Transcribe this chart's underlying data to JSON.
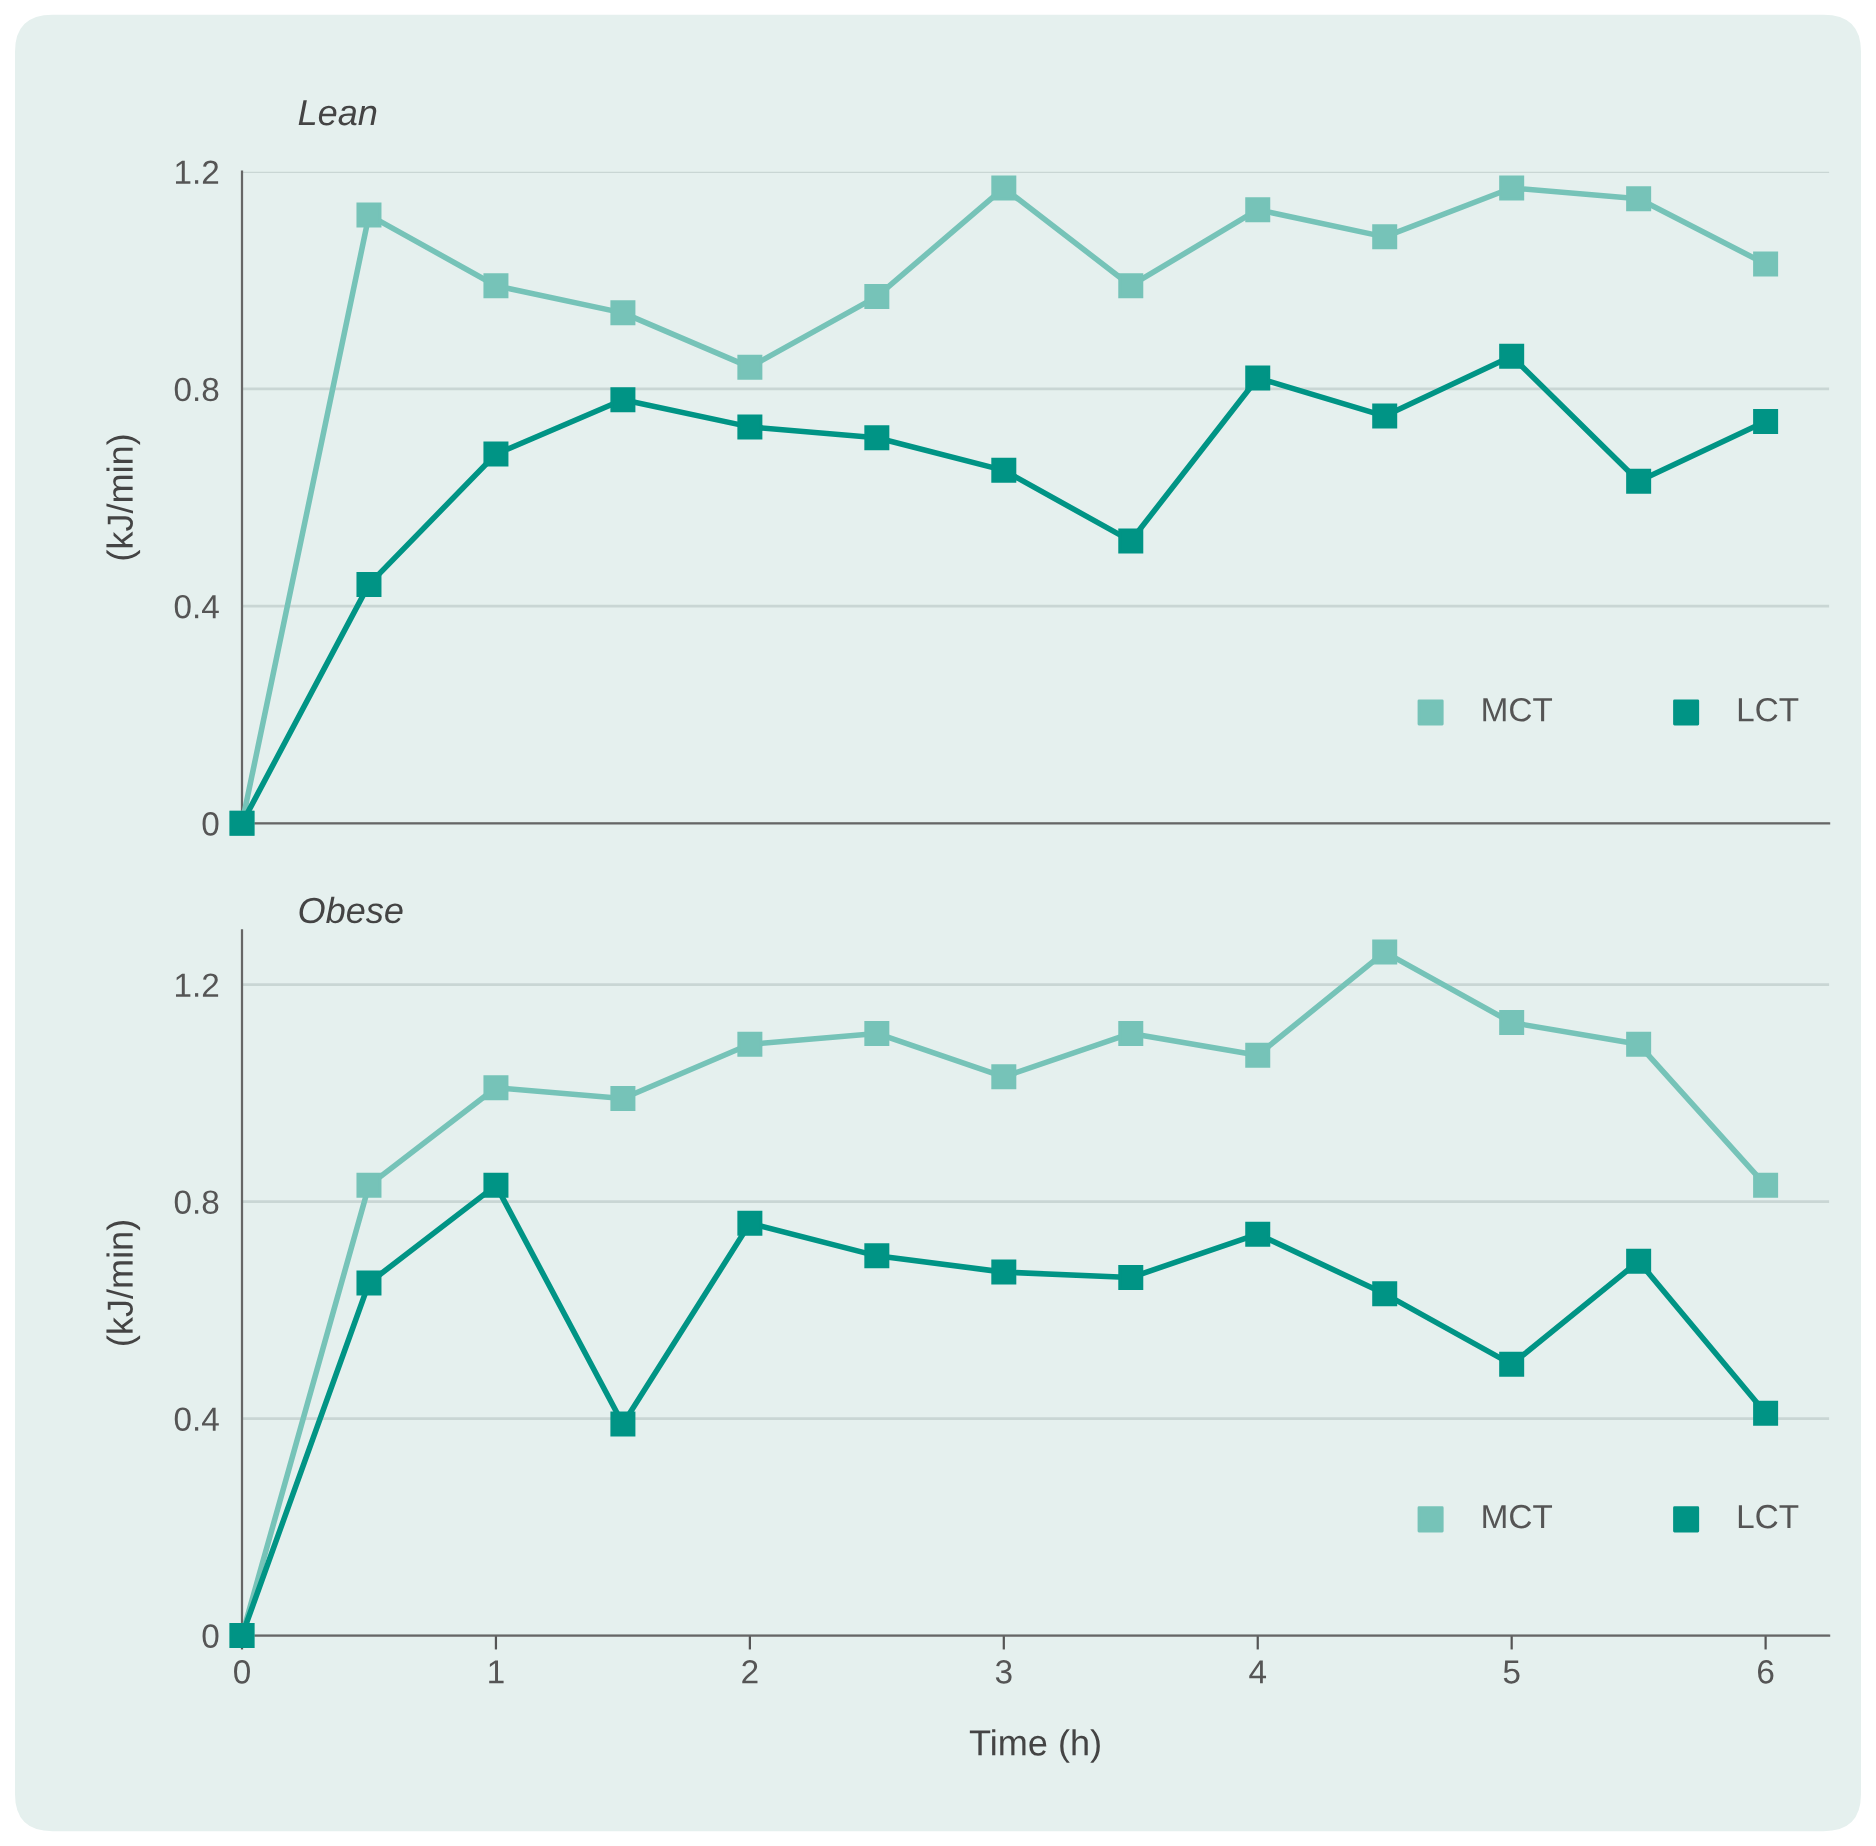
{
  "chart_data": [
    {
      "type": "line",
      "title": "Lean",
      "ylabel": "(kJ/min)",
      "x": [
        0,
        0.5,
        1,
        1.5,
        2,
        2.5,
        3,
        3.5,
        4,
        4.5,
        5,
        5.5,
        6
      ],
      "xlim": [
        0,
        6.25
      ],
      "ylim": [
        0,
        1.2
      ],
      "yticks": [
        0,
        0.4,
        0.8,
        1.2
      ],
      "tick_labels": "y",
      "grid": "y",
      "legend": "bottom right",
      "marker": "square",
      "line_style": "solid",
      "series": [
        {
          "name": "MCT",
          "color": "#76c3b8",
          "values": [
            0,
            1.12,
            0.99,
            0.94,
            0.84,
            0.97,
            1.17,
            0.99,
            1.13,
            1.08,
            1.17,
            1.15,
            1.03
          ]
        },
        {
          "name": "LCT",
          "color": "#009485",
          "values": [
            0,
            0.44,
            0.68,
            0.78,
            0.73,
            0.71,
            0.65,
            0.52,
            0.82,
            0.75,
            0.86,
            0.63,
            0.74
          ]
        }
      ]
    },
    {
      "type": "line",
      "title": "Obese",
      "ylabel": "(kJ/min)",
      "xlabel": "Time (h)",
      "x": [
        0,
        0.5,
        1,
        1.5,
        2,
        2.5,
        3,
        3.5,
        4,
        4.5,
        5,
        5.5,
        6
      ],
      "xlim": [
        0,
        6.25
      ],
      "xticks": [
        0,
        1,
        2,
        3,
        4,
        5,
        6
      ],
      "ylim": [
        0,
        1.3
      ],
      "yticks": [
        0,
        0.4,
        0.8,
        1.2
      ],
      "grid": "y",
      "legend": "bottom right",
      "marker": "square",
      "line_style": "solid",
      "series": [
        {
          "name": "MCT",
          "color": "#76c3b8",
          "values": [
            0,
            0.83,
            1.01,
            0.99,
            1.09,
            1.11,
            1.03,
            1.11,
            1.07,
            1.26,
            1.13,
            1.09,
            0.83
          ]
        },
        {
          "name": "LCT",
          "color": "#009485",
          "values": [
            0,
            0.65,
            0.83,
            0.39,
            0.76,
            0.7,
            0.67,
            0.66,
            0.74,
            0.63,
            0.5,
            0.69,
            0.41
          ]
        }
      ]
    }
  ]
}
